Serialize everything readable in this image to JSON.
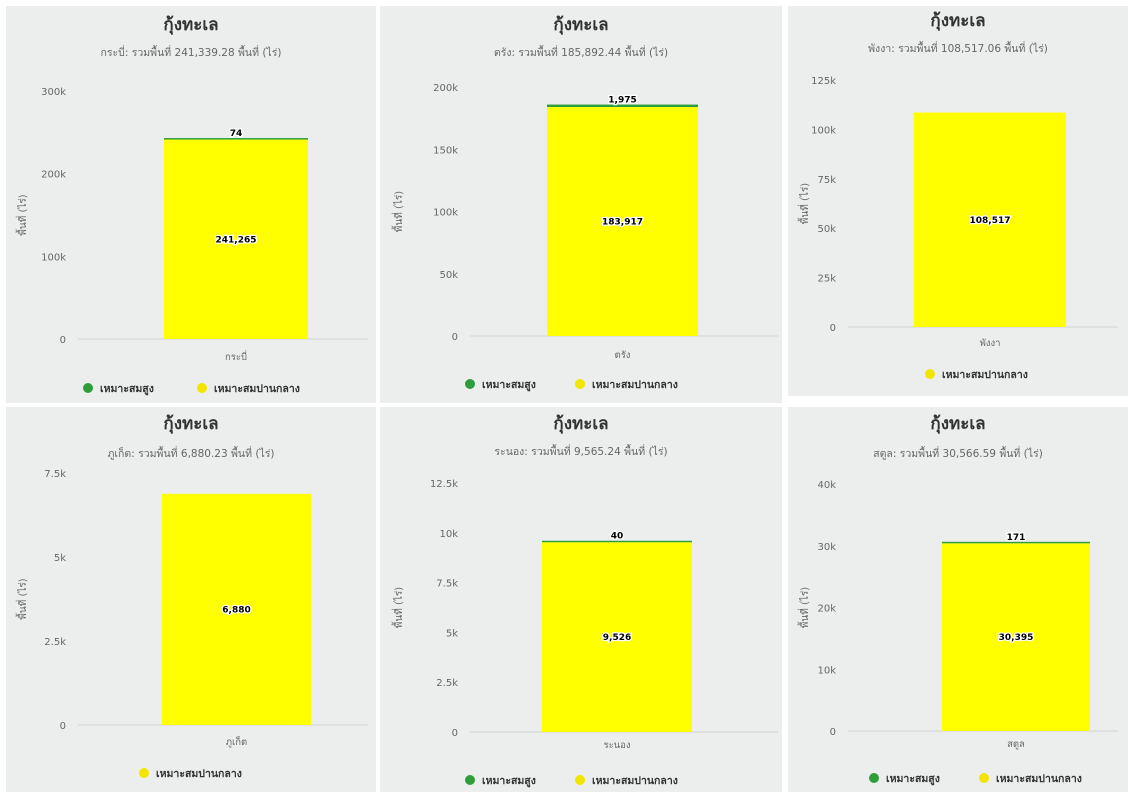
{
  "colors": {
    "high": "#2e9e3b",
    "medium": "#ffff00",
    "medium_legend": "#f2e500",
    "panel_bg": "#eceeee",
    "axis": "#d0d4d4"
  },
  "legend_labels": {
    "high": "เหมาะสมสูง",
    "medium": "เหมาะสมปานกลาง"
  },
  "ylabel": "พื้นที่ (ไร่)",
  "chart_data": [
    {
      "type": "bar",
      "title": "กุ้งทะเล",
      "subtitle": "กระบี่: รวมพื้นที่ 241,339.28 พื้นที่ (ไร่)",
      "categories": [
        "กระบี่"
      ],
      "series": [
        {
          "name": "เหมาะสมสูง",
          "values": [
            74
          ]
        },
        {
          "name": "เหมาะสมปานกลาง",
          "values": [
            241265
          ]
        }
      ],
      "data_labels": {
        "high": "74",
        "medium": "241,265"
      },
      "ylim": [
        0,
        300000
      ],
      "yticks": [
        0,
        100000,
        200000,
        300000
      ],
      "ytick_labels": [
        "0",
        "100k",
        "200k",
        "300k"
      ],
      "ylabel": "พื้นที่ (ไร่)",
      "legend": [
        "high",
        "medium"
      ]
    },
    {
      "type": "bar",
      "title": "กุ้งทะเล",
      "subtitle": "ตรัง: รวมพื้นที่ 185,892.44 พื้นที่ (ไร่)",
      "categories": [
        "ตรัง"
      ],
      "series": [
        {
          "name": "เหมาะสมสูง",
          "values": [
            1975
          ]
        },
        {
          "name": "เหมาะสมปานกลาง",
          "values": [
            183917
          ]
        }
      ],
      "data_labels": {
        "high": "1,975",
        "medium": "183,917"
      },
      "ylim": [
        0,
        200000
      ],
      "yticks": [
        0,
        50000,
        100000,
        150000,
        200000
      ],
      "ytick_labels": [
        "0",
        "50k",
        "100k",
        "150k",
        "200k"
      ],
      "ylabel": "พื้นที่ (ไร่)",
      "legend": [
        "high",
        "medium"
      ]
    },
    {
      "type": "bar",
      "title": "กุ้งทะเล",
      "subtitle": "พังงา: รวมพื้นที่ 108,517.06 พื้นที่ (ไร่)",
      "categories": [
        "พังงา"
      ],
      "series": [
        {
          "name": "เหมาะสมปานกลาง",
          "values": [
            108517
          ]
        }
      ],
      "data_labels": {
        "medium": "108,517"
      },
      "ylim": [
        0,
        125000
      ],
      "yticks": [
        0,
        25000,
        50000,
        75000,
        100000,
        125000
      ],
      "ytick_labels": [
        "0",
        "25k",
        "50k",
        "75k",
        "100k",
        "125k"
      ],
      "ylabel": "พื้นที่ (ไร่)",
      "legend": [
        "medium"
      ]
    },
    {
      "type": "bar",
      "title": "กุ้งทะเล",
      "subtitle": "ภูเก็ต: รวมพื้นที่ 6,880.23 พื้นที่ (ไร่)",
      "categories": [
        "ภูเก็ต"
      ],
      "series": [
        {
          "name": "เหมาะสมปานกลาง",
          "values": [
            6880
          ]
        }
      ],
      "data_labels": {
        "medium": "6,880"
      },
      "ylim": [
        0,
        7500
      ],
      "yticks": [
        0,
        2500,
        5000,
        7500
      ],
      "ytick_labels": [
        "0",
        "2.5k",
        "5k",
        "7.5k"
      ],
      "ylabel": "พื้นที่ (ไร่)",
      "legend": [
        "medium"
      ]
    },
    {
      "type": "bar",
      "title": "กุ้งทะเล",
      "subtitle": "ระนอง: รวมพื้นที่ 9,565.24 พื้นที่ (ไร่)",
      "categories": [
        "ระนอง"
      ],
      "series": [
        {
          "name": "เหมาะสมสูง",
          "values": [
            40
          ]
        },
        {
          "name": "เหมาะสมปานกลาง",
          "values": [
            9526
          ]
        }
      ],
      "data_labels": {
        "high": "40",
        "medium": "9,526"
      },
      "ylim": [
        0,
        12500
      ],
      "yticks": [
        0,
        2500,
        5000,
        7500,
        10000,
        12500
      ],
      "ytick_labels": [
        "0",
        "2.5k",
        "5k",
        "7.5k",
        "10k",
        "12.5k"
      ],
      "ylabel": "พื้นที่ (ไร่)",
      "legend": [
        "high",
        "medium"
      ]
    },
    {
      "type": "bar",
      "title": "กุ้งทะเล",
      "subtitle": "สตูล: รวมพื้นที่ 30,566.59 พื้นที่ (ไร่)",
      "categories": [
        "สตูล"
      ],
      "series": [
        {
          "name": "เหมาะสมสูง",
          "values": [
            171
          ]
        },
        {
          "name": "เหมาะสมปานกลาง",
          "values": [
            30395
          ]
        }
      ],
      "data_labels": {
        "high": "171",
        "medium": "30,395"
      },
      "ylim": [
        0,
        40000
      ],
      "yticks": [
        0,
        10000,
        20000,
        30000,
        40000
      ],
      "ytick_labels": [
        "0",
        "10k",
        "20k",
        "30k",
        "40k"
      ],
      "ylabel": "พื้นที่ (ไร่)",
      "legend": [
        "high",
        "medium"
      ]
    }
  ]
}
